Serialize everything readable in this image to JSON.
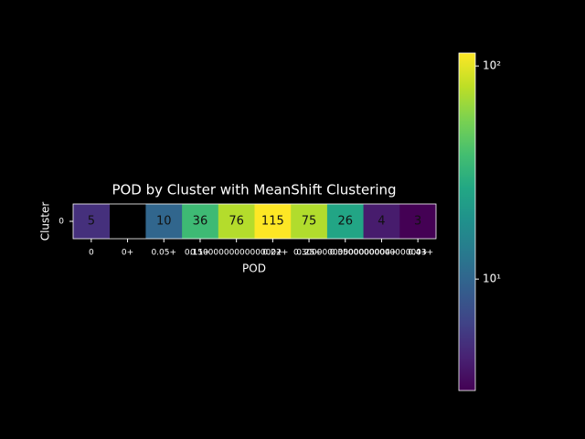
{
  "chart_data": {
    "type": "heatmap",
    "title": "POD by Cluster with MeanShift Clustering",
    "x_label": "POD",
    "y_label": "Cluster",
    "categories": [
      "0",
      "0+",
      "0.05+",
      "0.1+",
      "0.15000000000000002+",
      "0.2+",
      "0.25+",
      "0.30000000000000004+",
      "0.35000000000000003+",
      "0.4+"
    ],
    "rows": [
      "0"
    ],
    "values": [
      [
        5,
        null,
        10,
        36,
        76,
        115,
        75,
        26,
        4,
        3
      ]
    ],
    "colormap": "viridis",
    "color_scale": "log",
    "clim": [
      3,
      115
    ],
    "cticks": [
      {
        "value": 10,
        "label": "10¹"
      },
      {
        "value": 100,
        "label": "10²"
      }
    ]
  }
}
